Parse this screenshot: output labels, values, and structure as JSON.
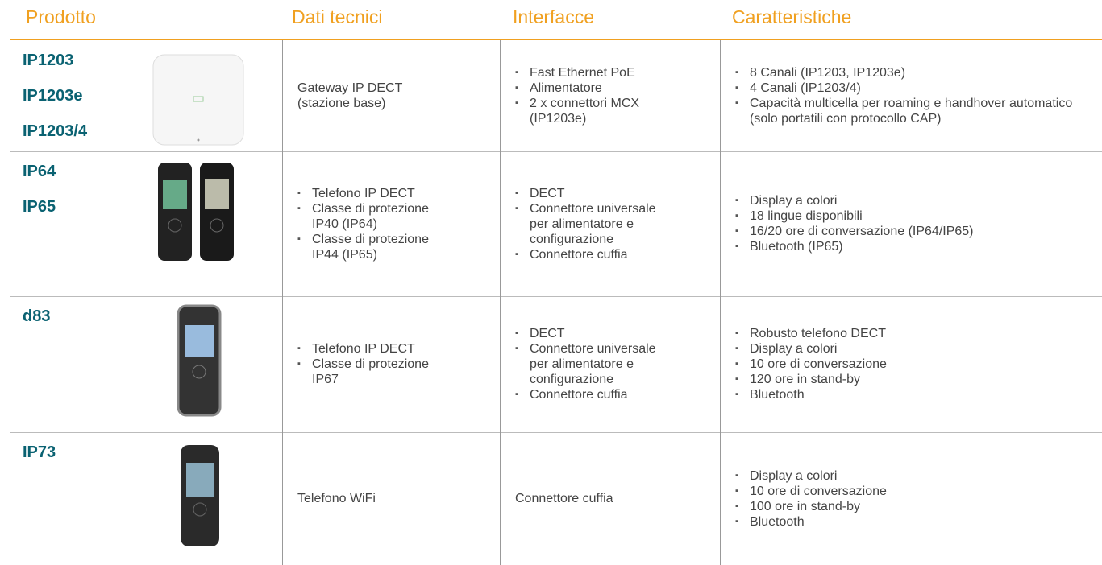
{
  "header": {
    "columns": [
      "Prodotto",
      "Dati tecnici",
      "Interfacce",
      "Caratteristiche"
    ]
  },
  "rows": [
    {
      "products": [
        "IP1203",
        "IP1203e",
        "IP1203/4"
      ],
      "technical": {
        "lines": [
          "Gateway IP DECT",
          "(stazione base)"
        ]
      },
      "interfaces": {
        "bullets": [
          "Fast Ethernet PoE",
          "Alimentatore",
          "2 x connettori MCX (IP1203e)"
        ]
      },
      "features": {
        "bullets": [
          "8 Canali (IP1203, IP1203e)",
          "4 Canali (IP1203/4)",
          "Capacità multicella per roaming e handhover automatico (solo portatili con protocollo CAP)"
        ]
      }
    },
    {
      "products": [
        "IP64",
        "IP65"
      ],
      "technical": {
        "bullets": [
          "Telefono IP DECT",
          "Classe di protezione IP40 (IP64)",
          "Classe di protezione IP44 (IP65)"
        ]
      },
      "interfaces": {
        "bullets": [
          "DECT",
          "Connettore universale per alimentatore e configurazione",
          "Connettore cuffia"
        ]
      },
      "features": {
        "bullets": [
          "Display a colori",
          "18 lingue disponibili",
          "16/20 ore di conversazione (IP64/IP65)",
          "Bluetooth (IP65)"
        ]
      }
    },
    {
      "products": [
        "d83"
      ],
      "technical": {
        "bullets": [
          "Telefono IP DECT",
          "Classe di protezione IP67"
        ]
      },
      "interfaces": {
        "bullets": [
          "DECT",
          "Connettore universale per alimentatore e configurazione",
          "Connettore cuffia"
        ]
      },
      "features": {
        "bullets": [
          "Robusto telefono DECT",
          "Display a colori",
          "10 ore di conversazione",
          "120 ore in stand-by",
          "Bluetooth"
        ]
      }
    },
    {
      "products": [
        "IP73"
      ],
      "technical": {
        "lines": [
          "Telefono WiFi"
        ]
      },
      "interfaces": {
        "lines": [
          "Connettore cuffia"
        ]
      },
      "features": {
        "bullets": [
          "Display a colori",
          "10 ore di conversazione",
          "100 ore in stand-by",
          "Bluetooth"
        ]
      }
    }
  ]
}
